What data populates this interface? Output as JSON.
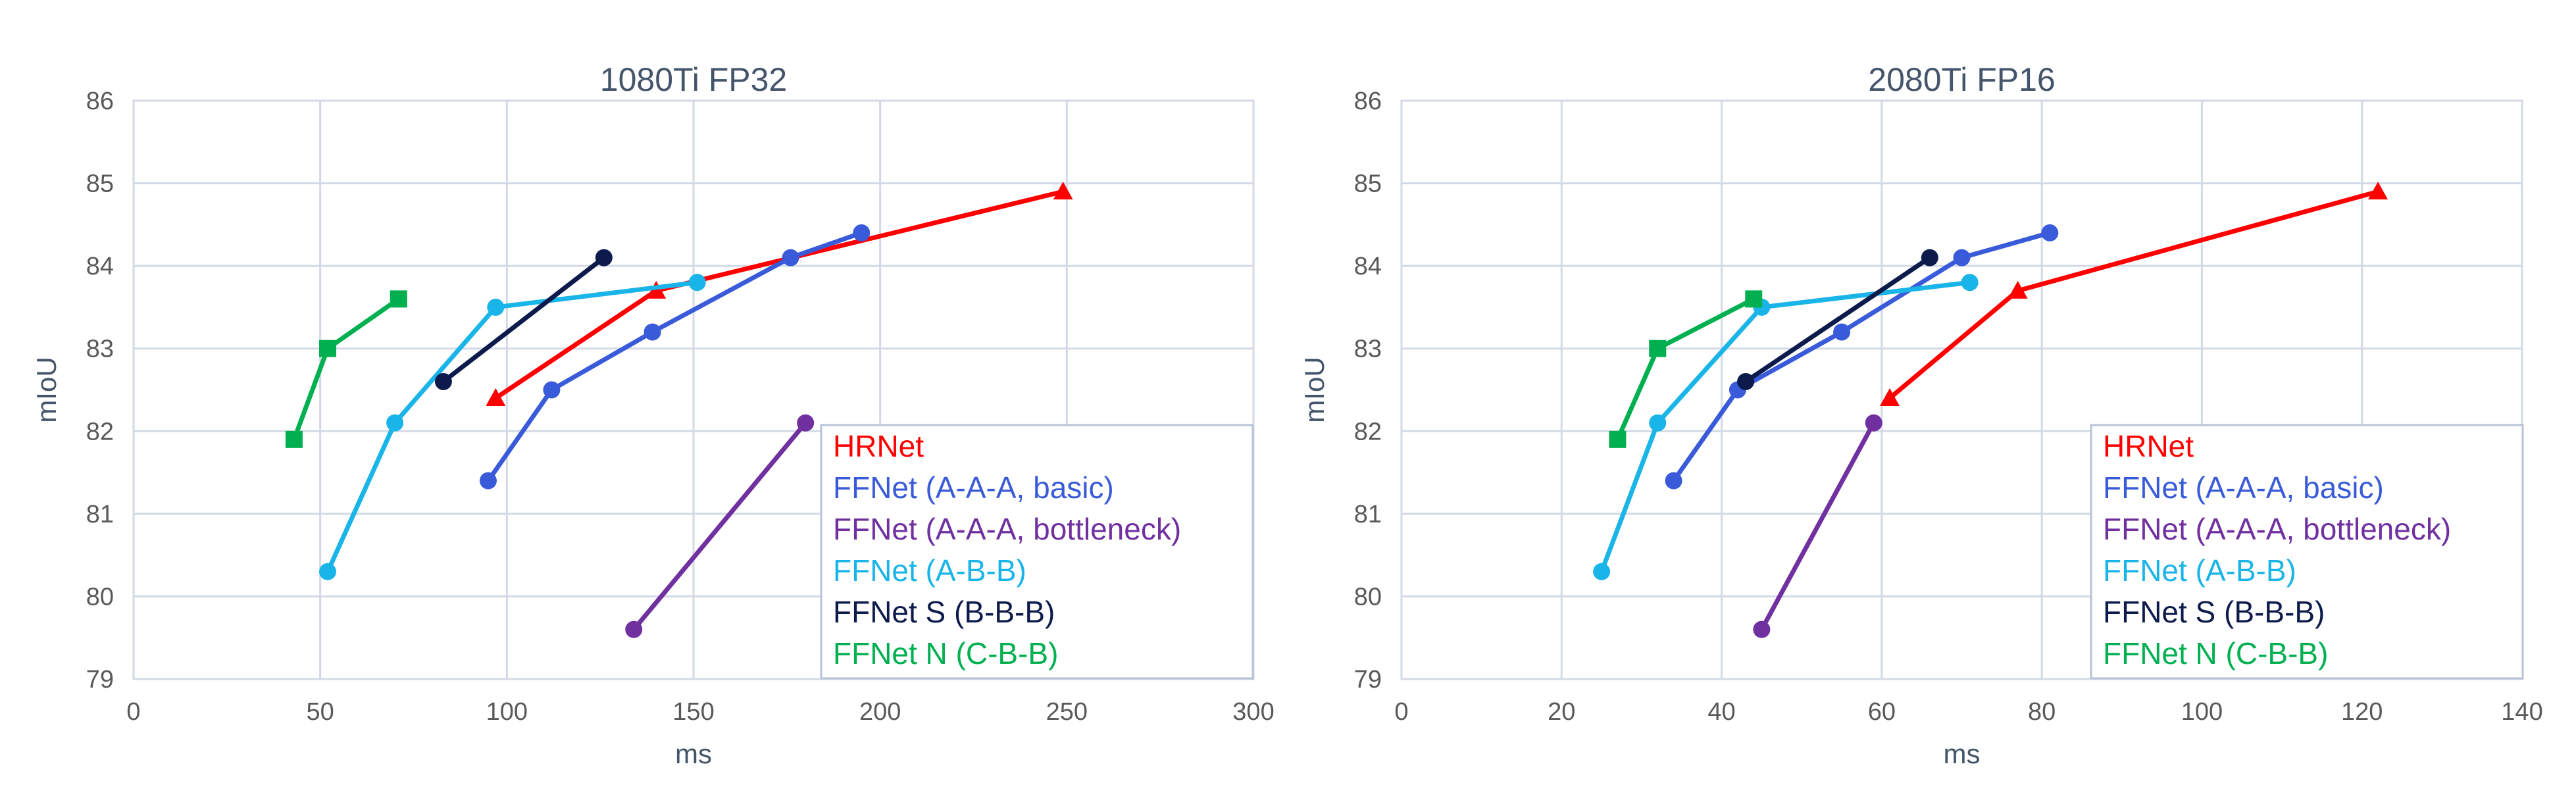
{
  "chart_data": [
    {
      "type": "line",
      "title": "1080Ti FP32",
      "xlabel": "ms",
      "ylabel": "mIoU",
      "xlim": [
        0,
        300
      ],
      "ylim": [
        79,
        86
      ],
      "xticks": [
        0,
        50,
        100,
        150,
        200,
        250,
        300
      ],
      "yticks": [
        79,
        80,
        81,
        82,
        83,
        84,
        85,
        86
      ],
      "grid": true,
      "legend_position": "bottom-right",
      "series": [
        {
          "name": "HRNet",
          "color": "#ff0000",
          "marker": "triangle",
          "points": [
            [
              97,
              82.4
            ],
            [
              140,
              83.7
            ],
            [
              249,
              84.9
            ]
          ]
        },
        {
          "name": "FFNet (A-A-A, basic)",
          "color": "#3a5bd9",
          "marker": "circle",
          "points": [
            [
              95,
              81.4
            ],
            [
              112,
              82.5
            ],
            [
              139,
              83.2
            ],
            [
              176,
              84.1
            ],
            [
              195,
              84.4
            ]
          ]
        },
        {
          "name": "FFNet (A-A-A, bottleneck)",
          "color": "#7030a0",
          "marker": "circle",
          "points": [
            [
              134,
              79.6
            ],
            [
              180,
              82.1
            ]
          ]
        },
        {
          "name": "FFNet (A-B-B)",
          "color": "#19b4e8",
          "marker": "circle",
          "points": [
            [
              52,
              80.3
            ],
            [
              70,
              82.1
            ],
            [
              97,
              83.5
            ],
            [
              151,
              83.8
            ]
          ]
        },
        {
          "name": "FFNet S (B-B-B)",
          "color": "#0d1b4c",
          "marker": "circle",
          "points": [
            [
              83,
              82.6
            ],
            [
              126,
              84.1
            ]
          ]
        },
        {
          "name": "FFNet N (C-B-B)",
          "color": "#00b050",
          "marker": "square",
          "points": [
            [
              43,
              81.9
            ],
            [
              52,
              83.0
            ],
            [
              71,
              83.6
            ]
          ]
        }
      ]
    },
    {
      "type": "line",
      "title": "2080Ti FP16",
      "xlabel": "ms",
      "ylabel": "mIoU",
      "xlim": [
        0,
        140
      ],
      "ylim": [
        79,
        86
      ],
      "xticks": [
        0,
        20,
        40,
        60,
        80,
        100,
        120,
        140
      ],
      "yticks": [
        79,
        80,
        81,
        82,
        83,
        84,
        85,
        86
      ],
      "grid": true,
      "legend_position": "bottom-right",
      "series": [
        {
          "name": "HRNet",
          "color": "#ff0000",
          "marker": "triangle",
          "points": [
            [
              61,
              82.4
            ],
            [
              77,
              83.7
            ],
            [
              122,
              84.9
            ]
          ]
        },
        {
          "name": "FFNet (A-A-A, basic)",
          "color": "#3a5bd9",
          "marker": "circle",
          "points": [
            [
              34,
              81.4
            ],
            [
              42,
              82.5
            ],
            [
              55,
              83.2
            ],
            [
              70,
              84.1
            ],
            [
              81,
              84.4
            ]
          ]
        },
        {
          "name": "FFNet (A-A-A, bottleneck)",
          "color": "#7030a0",
          "marker": "circle",
          "points": [
            [
              45,
              79.6
            ],
            [
              59,
              82.1
            ]
          ]
        },
        {
          "name": "FFNet (A-B-B)",
          "color": "#19b4e8",
          "marker": "circle",
          "points": [
            [
              25,
              80.3
            ],
            [
              32,
              82.1
            ],
            [
              45,
              83.5
            ],
            [
              71,
              83.8
            ]
          ]
        },
        {
          "name": "FFNet S (B-B-B)",
          "color": "#0d1b4c",
          "marker": "circle",
          "points": [
            [
              43,
              82.6
            ],
            [
              66,
              84.1
            ]
          ]
        },
        {
          "name": "FFNet N (C-B-B)",
          "color": "#00b050",
          "marker": "square",
          "points": [
            [
              27,
              81.9
            ],
            [
              32,
              83.0
            ],
            [
              44,
              83.6
            ]
          ]
        }
      ]
    }
  ]
}
